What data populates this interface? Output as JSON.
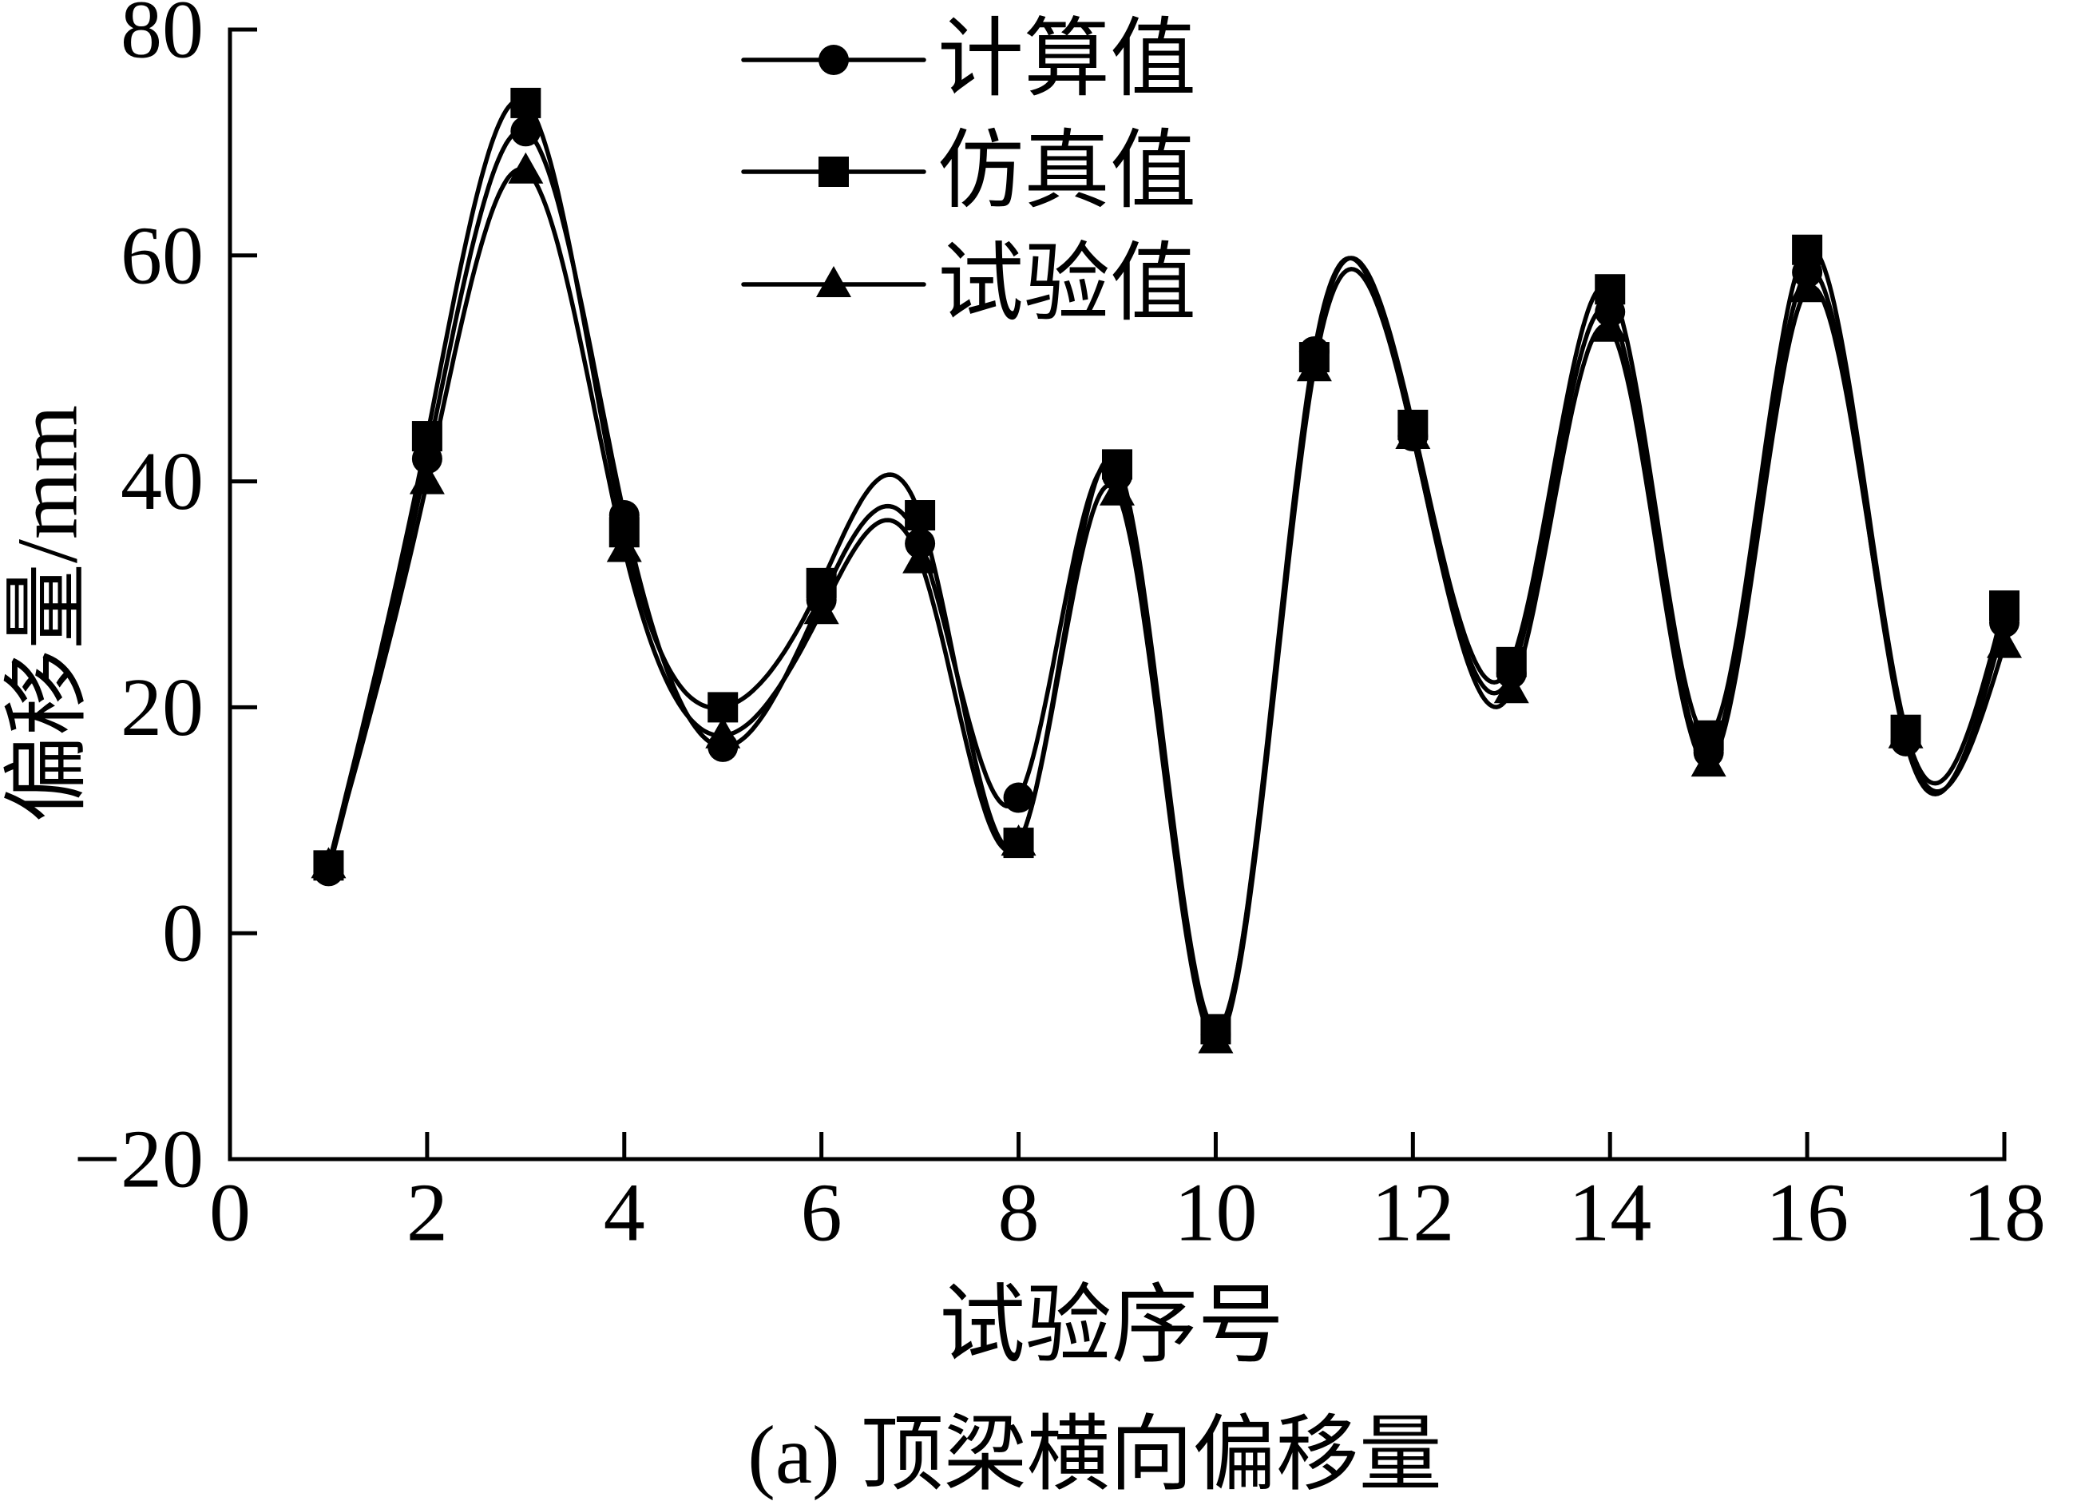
{
  "chart_data": {
    "type": "line",
    "line_style": "spline",
    "color": "#000000",
    "x": [
      1,
      2,
      3,
      4,
      5,
      6,
      7,
      8,
      9,
      10,
      11,
      12,
      13,
      14,
      15,
      16,
      17,
      18
    ],
    "series": [
      {
        "name": "计算值",
        "marker": "circle",
        "values": [
          5.5,
          42,
          71,
          37,
          16.5,
          29.5,
          34.5,
          12,
          40.5,
          -9,
          51.5,
          44,
          23,
          55,
          16,
          58.5,
          17,
          27.5
        ]
      },
      {
        "name": "仿真值",
        "marker": "square",
        "values": [
          6,
          44,
          73.5,
          35.5,
          20,
          31,
          37,
          8,
          41.5,
          -8.5,
          51,
          45,
          24,
          57,
          17.5,
          60.5,
          18,
          29
        ]
      },
      {
        "name": "试验值",
        "marker": "triangle",
        "values": [
          6,
          40,
          67.5,
          34,
          17.5,
          28.5,
          33,
          8,
          39,
          -9.5,
          50,
          44,
          21.5,
          53.5,
          15,
          57,
          17.5,
          25.5
        ]
      }
    ],
    "xlabel": "试验序号",
    "ylabel": "偏移量/mm",
    "caption": "(a) 顶梁横向偏移量",
    "xlim": [
      0,
      18
    ],
    "ylim": [
      -20,
      80
    ],
    "xticks": [
      0,
      2,
      4,
      6,
      8,
      10,
      12,
      14,
      16,
      18
    ],
    "xtick_labels": [
      "0",
      "2",
      "4",
      "6",
      "8",
      "10",
      "12",
      "14",
      "16",
      "18"
    ],
    "yticks": [
      -20,
      0,
      20,
      40,
      60,
      80
    ],
    "ytick_labels": [
      "−20",
      "0",
      "20",
      "40",
      "60",
      "80"
    ],
    "grid": false,
    "legend": "top-center"
  }
}
